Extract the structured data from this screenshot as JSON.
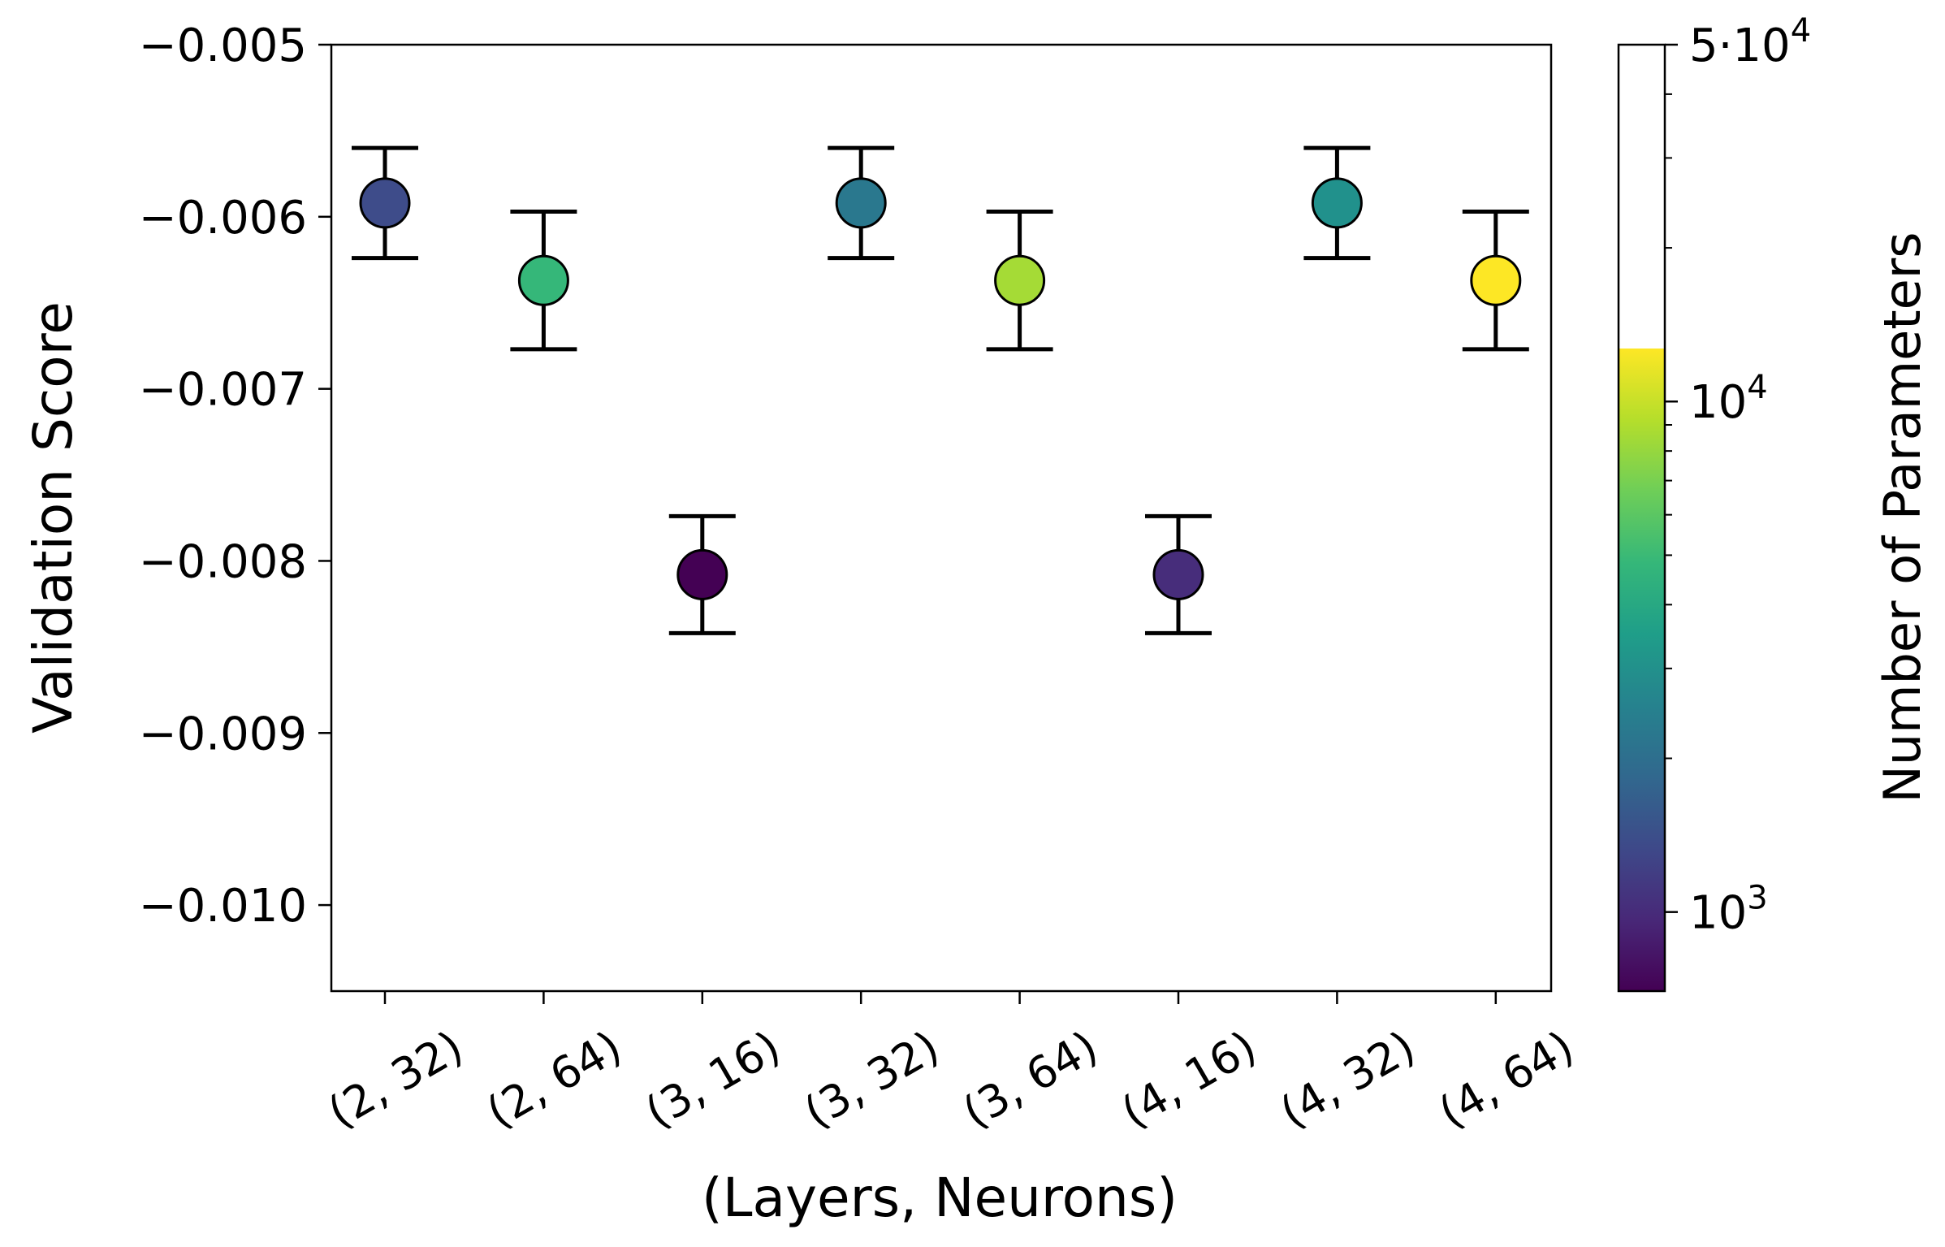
{
  "chart_data": {
    "type": "scatter",
    "xlabel": "(Layers, Neurons)",
    "ylabel": "Validation Score",
    "ylim": [
      -0.0105,
      -0.005
    ],
    "yticks": [
      {
        "value": -0.005,
        "label": "−0.005"
      },
      {
        "value": -0.006,
        "label": "−0.006"
      },
      {
        "value": -0.007,
        "label": "−0.007"
      },
      {
        "value": -0.008,
        "label": "−0.008"
      },
      {
        "value": -0.009,
        "label": "−0.009"
      },
      {
        "value": -0.01,
        "label": "−0.010"
      }
    ],
    "categories": [
      "(2, 32)",
      "(2, 64)",
      "(3, 16)",
      "(3, 32)",
      "(3, 64)",
      "(4, 16)",
      "(4, 32)",
      "(4, 64)"
    ],
    "points": [
      {
        "category": "(2, 32)",
        "y": -0.00592,
        "err_low": -0.00624,
        "err_high": -0.0056,
        "parameters": 1200,
        "color": "#3e4c8a"
      },
      {
        "category": "(2, 64)",
        "y": -0.00637,
        "err_low": -0.00677,
        "err_high": -0.00597,
        "parameters": 4300,
        "color": "#35b779"
      },
      {
        "category": "(3, 16)",
        "y": -0.00808,
        "err_low": -0.00842,
        "err_high": -0.00774,
        "parameters": 750,
        "color": "#440154"
      },
      {
        "category": "(3, 32)",
        "y": -0.00592,
        "err_low": -0.00624,
        "err_high": -0.0056,
        "parameters": 2200,
        "color": "#2a788e"
      },
      {
        "category": "(3, 64)",
        "y": -0.00637,
        "err_low": -0.00677,
        "err_high": -0.00597,
        "parameters": 8500,
        "color": "#a5db36"
      },
      {
        "category": "(4, 16)",
        "y": -0.00808,
        "err_low": -0.00842,
        "err_high": -0.00774,
        "parameters": 950,
        "color": "#472d7b"
      },
      {
        "category": "(4, 32)",
        "y": -0.00592,
        "err_low": -0.00624,
        "err_high": -0.0056,
        "parameters": 3200,
        "color": "#21918c"
      },
      {
        "category": "(4, 64)",
        "y": -0.00637,
        "err_low": -0.00677,
        "err_high": -0.00597,
        "parameters": 12700,
        "color": "#fde725"
      }
    ],
    "colorbar": {
      "label": "Number of Parameters",
      "scale": "log",
      "min": 700,
      "max": 50000,
      "colormap_max": 12700,
      "colormap": [
        "#440154",
        "#482878",
        "#3e4989",
        "#31688e",
        "#26828e",
        "#1f9e89",
        "#35b779",
        "#6ece58",
        "#b5de2b",
        "#fde725"
      ],
      "over_color": "#ffffff",
      "ticks": [
        {
          "value": 1000,
          "base": "10",
          "exp": "3"
        },
        {
          "value": 10000,
          "base": "10",
          "exp": "4"
        },
        {
          "value": 50000,
          "base": "5·10",
          "exp": "4"
        }
      ],
      "minor_ticks": [
        2000,
        3000,
        4000,
        5000,
        6000,
        7000,
        8000,
        9000,
        20000,
        30000,
        40000
      ]
    },
    "grid": false,
    "marker": "circle",
    "errorbar_color": "#000000"
  }
}
